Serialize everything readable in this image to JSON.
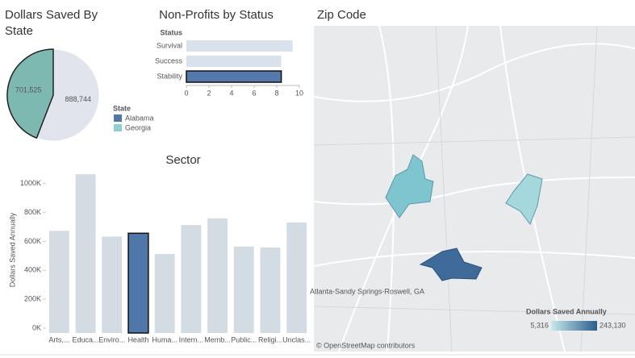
{
  "chart_data": [
    {
      "type": "pie",
      "title": "Dollars Saved By State",
      "legend_title": "State",
      "categories": [
        "Alabama",
        "Georgia"
      ],
      "values": [
        888744,
        701525
      ],
      "value_labels": [
        "888,744",
        "701,525"
      ],
      "colors": [
        "#e1e4ec",
        "#7db8b1"
      ],
      "legend_colors": [
        "#4f77a8",
        "#8fcfd0"
      ]
    },
    {
      "type": "hbar",
      "title": "Non-Profits by Status",
      "axis_title": "Status",
      "categories": [
        "Survival",
        "Success",
        "Stability"
      ],
      "values": [
        9.4,
        8.4,
        8.4
      ],
      "colors": [
        "#d9e2ec",
        "#d9e2ec",
        "#5479aa"
      ],
      "xlim": [
        0,
        10
      ],
      "xticks": [
        0,
        2,
        4,
        6,
        8,
        10
      ]
    },
    {
      "type": "bar",
      "title": "Sector",
      "y_label": "Dollars Saved Annually",
      "categories": [
        "Arts,...",
        "Educa...",
        "Enviro...",
        "Health",
        "Huma...",
        "Intern...",
        "Memb...",
        "Public...",
        "Religi...",
        "Unclas..."
      ],
      "values": [
        707000,
        1098000,
        667000,
        690000,
        546000,
        747000,
        793000,
        598000,
        592000,
        764000
      ],
      "colors": [
        "#d3dbe3",
        "#d3dbe3",
        "#d3dbe3",
        "#4f77a8",
        "#d3dbe3",
        "#d3dbe3",
        "#d3dbe3",
        "#d3dbe3",
        "#d3dbe3",
        "#d3dbe3"
      ],
      "ylim": [
        0,
        1110000
      ],
      "yticks": [
        {
          "value": 0,
          "label": "0K"
        },
        {
          "value": 200000,
          "label": "200K"
        },
        {
          "value": 400000,
          "label": "400K"
        },
        {
          "value": 600000,
          "label": "600K"
        },
        {
          "value": 800000,
          "label": "800K"
        },
        {
          "value": 1000000,
          "label": "1000K"
        }
      ]
    }
  ],
  "map": {
    "title": "Zip Code",
    "city_label": "Atlanta-Sandy Springs-Roswell, GA",
    "credit": "© OpenStreetMap contributors",
    "legend_title": "Dollars Saved Annually",
    "legend_min": "5,316",
    "legend_max": "243,130"
  }
}
